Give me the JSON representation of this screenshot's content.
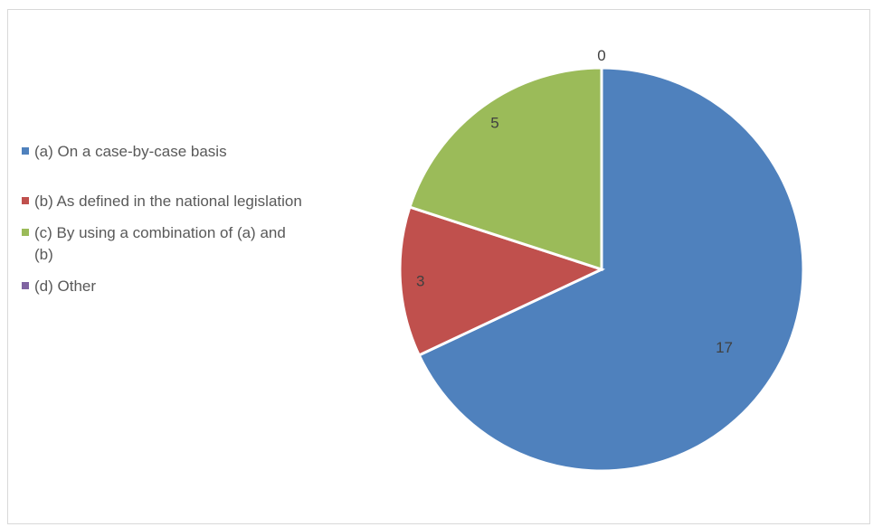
{
  "chart_data": {
    "type": "pie",
    "title": "",
    "legend_position": "left",
    "series": [
      {
        "values": [
          17,
          3,
          5,
          0
        ]
      }
    ],
    "categories": [
      "(a) On a case-by-case basis",
      "(b) As defined in the national legislation",
      "(c) By using a combination of (a) and (b)",
      "(d) Other"
    ],
    "colors": [
      "#4f81bd",
      "#c0504d",
      "#9bbb59",
      "#8064a2"
    ],
    "data_labels": [
      "17",
      "3",
      "5",
      "0"
    ]
  }
}
